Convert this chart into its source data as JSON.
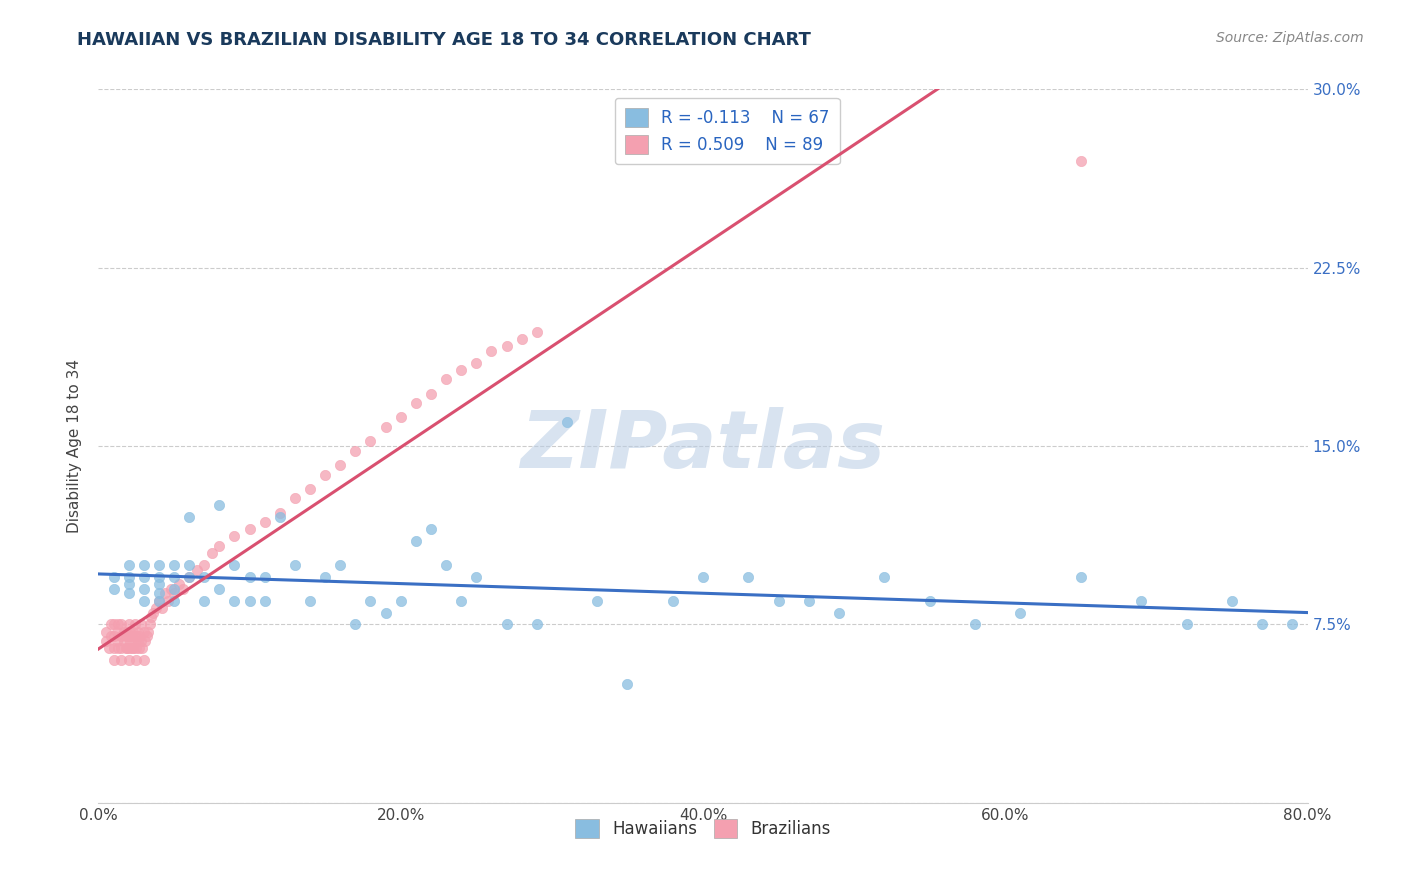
{
  "title": "HAWAIIAN VS BRAZILIAN DISABILITY AGE 18 TO 34 CORRELATION CHART",
  "source_text": "Source: ZipAtlas.com",
  "ylabel": "Disability Age 18 to 34",
  "xmin": 0.0,
  "xmax": 0.8,
  "ymin": 0.0,
  "ymax": 0.3,
  "xtick_labels": [
    "0.0%",
    "20.0%",
    "40.0%",
    "60.0%",
    "80.0%"
  ],
  "xtick_vals": [
    0.0,
    0.2,
    0.4,
    0.6,
    0.8
  ],
  "ytick_labels": [
    "",
    "7.5%",
    "15.0%",
    "22.5%",
    "30.0%"
  ],
  "ytick_vals": [
    0.0,
    0.075,
    0.15,
    0.225,
    0.3
  ],
  "hawaiian_color": "#89bde0",
  "hawaiian_line_color": "#3a6fc4",
  "brazilian_color": "#f4a0b0",
  "brazilian_line_color": "#d95070",
  "hawaiian_R": -0.113,
  "hawaiian_N": 67,
  "brazilian_R": 0.509,
  "brazilian_N": 89,
  "legend_label_hawaiian": "Hawaiians",
  "legend_label_brazilian": "Brazilians",
  "watermark": "ZIPatlas",
  "hawaiian_x": [
    0.01,
    0.01,
    0.02,
    0.02,
    0.02,
    0.02,
    0.03,
    0.03,
    0.03,
    0.03,
    0.04,
    0.04,
    0.04,
    0.04,
    0.04,
    0.05,
    0.05,
    0.05,
    0.05,
    0.06,
    0.06,
    0.06,
    0.07,
    0.07,
    0.08,
    0.08,
    0.09,
    0.09,
    0.1,
    0.1,
    0.11,
    0.11,
    0.12,
    0.13,
    0.14,
    0.15,
    0.16,
    0.17,
    0.18,
    0.19,
    0.2,
    0.21,
    0.22,
    0.23,
    0.24,
    0.25,
    0.27,
    0.29,
    0.31,
    0.33,
    0.35,
    0.38,
    0.4,
    0.43,
    0.45,
    0.47,
    0.49,
    0.52,
    0.55,
    0.58,
    0.61,
    0.65,
    0.69,
    0.72,
    0.75,
    0.77,
    0.79
  ],
  "hawaiian_y": [
    0.095,
    0.09,
    0.095,
    0.092,
    0.088,
    0.1,
    0.085,
    0.09,
    0.095,
    0.1,
    0.088,
    0.092,
    0.085,
    0.095,
    0.1,
    0.085,
    0.09,
    0.095,
    0.1,
    0.12,
    0.095,
    0.1,
    0.085,
    0.095,
    0.125,
    0.09,
    0.085,
    0.1,
    0.095,
    0.085,
    0.095,
    0.085,
    0.12,
    0.1,
    0.085,
    0.095,
    0.1,
    0.075,
    0.085,
    0.08,
    0.085,
    0.11,
    0.115,
    0.1,
    0.085,
    0.095,
    0.075,
    0.075,
    0.16,
    0.085,
    0.05,
    0.085,
    0.095,
    0.095,
    0.085,
    0.085,
    0.08,
    0.095,
    0.085,
    0.075,
    0.08,
    0.095,
    0.085,
    0.075,
    0.085,
    0.075,
    0.075
  ],
  "brazilian_x": [
    0.005,
    0.005,
    0.007,
    0.008,
    0.008,
    0.01,
    0.01,
    0.01,
    0.01,
    0.012,
    0.012,
    0.013,
    0.013,
    0.015,
    0.015,
    0.015,
    0.015,
    0.017,
    0.017,
    0.018,
    0.018,
    0.019,
    0.019,
    0.02,
    0.02,
    0.02,
    0.02,
    0.021,
    0.021,
    0.022,
    0.022,
    0.023,
    0.023,
    0.024,
    0.024,
    0.025,
    0.025,
    0.025,
    0.026,
    0.026,
    0.027,
    0.027,
    0.028,
    0.028,
    0.029,
    0.03,
    0.03,
    0.031,
    0.032,
    0.033,
    0.034,
    0.035,
    0.036,
    0.038,
    0.04,
    0.042,
    0.044,
    0.046,
    0.048,
    0.05,
    0.053,
    0.056,
    0.06,
    0.065,
    0.07,
    0.075,
    0.08,
    0.09,
    0.1,
    0.11,
    0.12,
    0.13,
    0.14,
    0.15,
    0.16,
    0.17,
    0.18,
    0.19,
    0.2,
    0.21,
    0.22,
    0.23,
    0.24,
    0.25,
    0.26,
    0.27,
    0.28,
    0.29,
    0.65
  ],
  "brazilian_y": [
    0.068,
    0.072,
    0.065,
    0.07,
    0.075,
    0.06,
    0.065,
    0.07,
    0.075,
    0.068,
    0.072,
    0.065,
    0.075,
    0.06,
    0.065,
    0.07,
    0.075,
    0.068,
    0.072,
    0.065,
    0.07,
    0.065,
    0.072,
    0.06,
    0.065,
    0.07,
    0.075,
    0.068,
    0.072,
    0.065,
    0.07,
    0.065,
    0.072,
    0.068,
    0.075,
    0.06,
    0.065,
    0.07,
    0.068,
    0.072,
    0.065,
    0.07,
    0.068,
    0.075,
    0.065,
    0.06,
    0.072,
    0.068,
    0.07,
    0.072,
    0.075,
    0.078,
    0.08,
    0.082,
    0.085,
    0.082,
    0.088,
    0.085,
    0.09,
    0.088,
    0.092,
    0.09,
    0.095,
    0.098,
    0.1,
    0.105,
    0.108,
    0.112,
    0.115,
    0.118,
    0.122,
    0.128,
    0.132,
    0.138,
    0.142,
    0.148,
    0.152,
    0.158,
    0.162,
    0.168,
    0.172,
    0.178,
    0.182,
    0.185,
    0.19,
    0.192,
    0.195,
    0.198,
    0.27
  ]
}
